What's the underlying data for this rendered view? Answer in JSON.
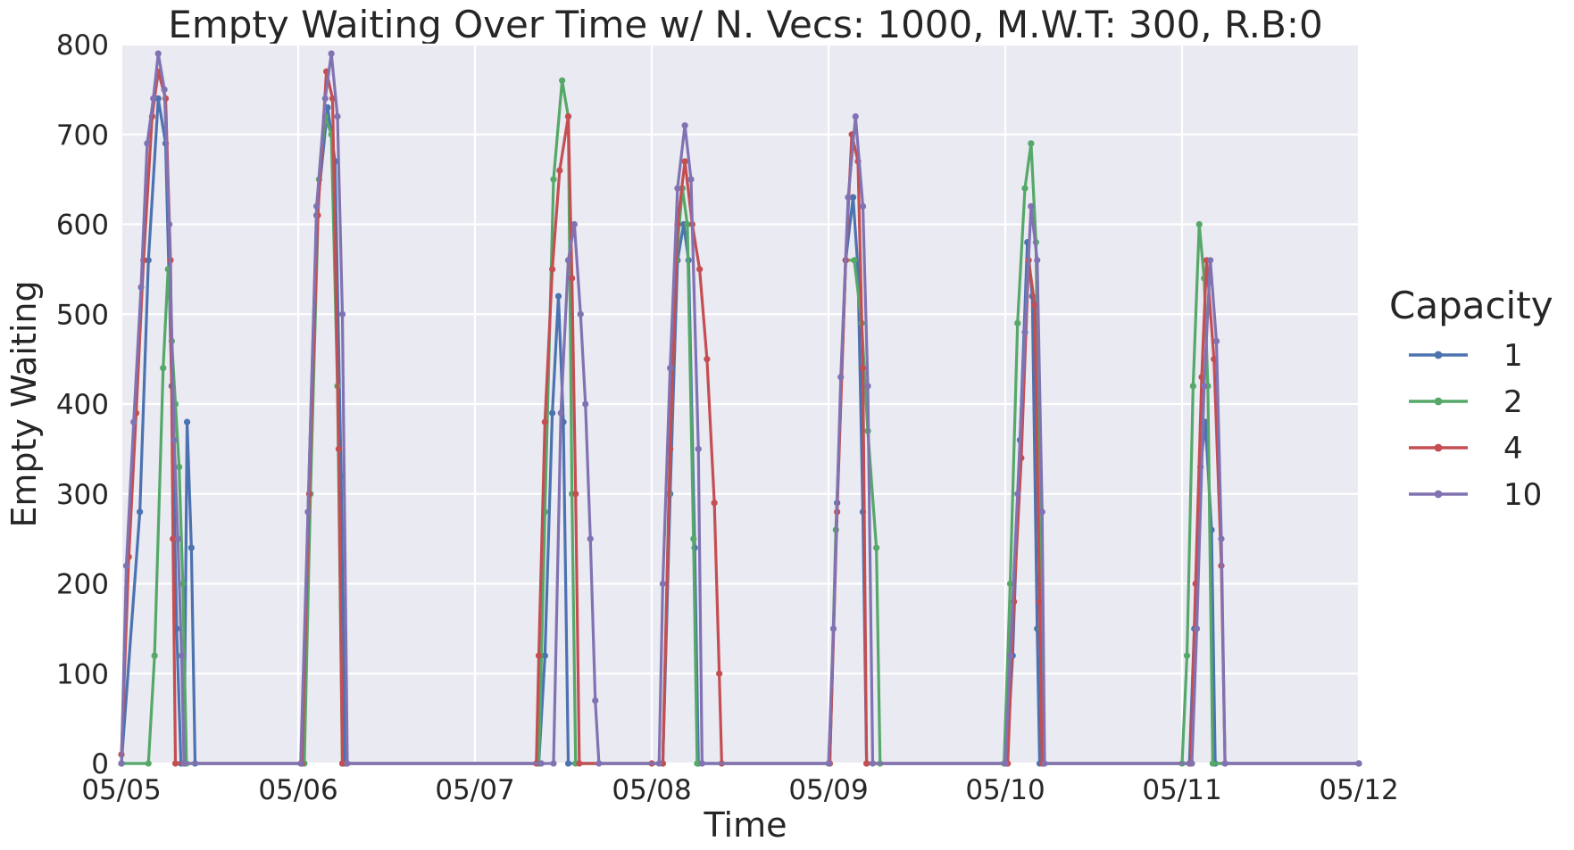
{
  "chart_data": {
    "type": "line",
    "title": "Empty Waiting Over Time w/ N. Vecs: 1000, M.W.T: 300, R.B:0",
    "xlabel": "Time",
    "ylabel": "Empty Waiting",
    "x_ticks": [
      "05/05",
      "05/06",
      "05/07",
      "05/08",
      "05/09",
      "05/10",
      "05/11",
      "05/12"
    ],
    "y_ticks": [
      "0",
      "100",
      "200",
      "300",
      "400",
      "500",
      "600",
      "700",
      "800"
    ],
    "xlim": [
      "05/05 00:00",
      "05/12 00:00"
    ],
    "ylim": [
      0,
      800
    ],
    "grid": true,
    "legend": {
      "title": "Capacity",
      "position": "right"
    },
    "series": [
      {
        "name": "1",
        "color": "#4c72b0",
        "points": [
          [
            "05/05 00:00",
            0
          ],
          [
            "05/05 02:30",
            280
          ],
          [
            "05/05 03:40",
            560
          ],
          [
            "05/05 05:00",
            740
          ],
          [
            "05/05 06:00",
            690
          ],
          [
            "05/05 06:50",
            420
          ],
          [
            "05/05 07:30",
            150
          ],
          [
            "05/05 08:05",
            0
          ],
          [
            "05/05 08:30",
            0
          ],
          [
            "05/05 08:55",
            380
          ],
          [
            "05/05 09:30",
            240
          ],
          [
            "05/05 10:00",
            0
          ],
          [
            "05/06 00:30",
            0
          ],
          [
            "05/06 01:20",
            280
          ],
          [
            "05/06 02:30",
            610
          ],
          [
            "05/06 04:00",
            730
          ],
          [
            "05/06 05:00",
            670
          ],
          [
            "05/06 05:50",
            320
          ],
          [
            "05/06 06:20",
            0
          ],
          [
            "05/07 08:40",
            0
          ],
          [
            "05/07 09:30",
            120
          ],
          [
            "05/07 10:30",
            390
          ],
          [
            "05/07 11:20",
            520
          ],
          [
            "05/07 12:00",
            380
          ],
          [
            "05/07 12:40",
            0
          ],
          [
            "05/08 01:30",
            0
          ],
          [
            "05/08 02:30",
            300
          ],
          [
            "05/08 03:30",
            560
          ],
          [
            "05/08 04:20",
            600
          ],
          [
            "05/08 05:00",
            560
          ],
          [
            "05/08 05:50",
            240
          ],
          [
            "05/08 06:20",
            0
          ],
          [
            "05/09 00:10",
            0
          ],
          [
            "05/09 01:10",
            290
          ],
          [
            "05/09 02:20",
            560
          ],
          [
            "05/09 03:20",
            630
          ],
          [
            "05/09 04:00",
            550
          ],
          [
            "05/09 04:40",
            280
          ],
          [
            "05/09 05:10",
            0
          ],
          [
            "05/10 00:10",
            0
          ],
          [
            "05/10 01:00",
            120
          ],
          [
            "05/10 02:00",
            360
          ],
          [
            "05/10 03:00",
            580
          ],
          [
            "05/10 03:40",
            520
          ],
          [
            "05/10 04:20",
            150
          ],
          [
            "05/10 04:40",
            0
          ],
          [
            "05/11 01:00",
            0
          ],
          [
            "05/11 01:40",
            150
          ],
          [
            "05/11 02:30",
            330
          ],
          [
            "05/11 03:10",
            380
          ],
          [
            "05/11 04:00",
            260
          ],
          [
            "05/11 04:30",
            0
          ],
          [
            "05/12 00:00",
            0
          ]
        ]
      },
      {
        "name": "2",
        "color": "#55a868",
        "points": [
          [
            "05/05 00:00",
            0
          ],
          [
            "05/05 03:40",
            0
          ],
          [
            "05/05 04:30",
            120
          ],
          [
            "05/05 05:40",
            440
          ],
          [
            "05/05 06:20",
            550
          ],
          [
            "05/05 06:50",
            470
          ],
          [
            "05/05 07:20",
            400
          ],
          [
            "05/05 07:50",
            330
          ],
          [
            "05/05 08:20",
            200
          ],
          [
            "05/05 08:50",
            0
          ],
          [
            "05/06 00:50",
            0
          ],
          [
            "05/06 01:40",
            300
          ],
          [
            "05/06 02:50",
            650
          ],
          [
            "05/06 03:40",
            720
          ],
          [
            "05/06 04:30",
            700
          ],
          [
            "05/06 05:20",
            420
          ],
          [
            "05/06 06:00",
            0
          ],
          [
            "05/07 08:40",
            0
          ],
          [
            "05/07 09:30",
            280
          ],
          [
            "05/07 10:40",
            650
          ],
          [
            "05/07 11:50",
            760
          ],
          [
            "05/07 12:40",
            720
          ],
          [
            "05/07 13:10",
            300
          ],
          [
            "05/07 13:40",
            0
          ],
          [
            "05/08 01:30",
            0
          ],
          [
            "05/08 02:20",
            300
          ],
          [
            "05/08 03:20",
            560
          ],
          [
            "05/08 04:10",
            640
          ],
          [
            "05/08 04:50",
            600
          ],
          [
            "05/08 05:40",
            250
          ],
          [
            "05/08 06:10",
            0
          ],
          [
            "05/09 00:10",
            0
          ],
          [
            "05/09 01:00",
            260
          ],
          [
            "05/09 02:20",
            560
          ],
          [
            "05/09 03:30",
            560
          ],
          [
            "05/09 04:30",
            490
          ],
          [
            "05/09 05:20",
            370
          ],
          [
            "05/09 06:30",
            240
          ],
          [
            "05/09 07:00",
            0
          ],
          [
            "05/09 23:50",
            0
          ],
          [
            "05/10 00:40",
            200
          ],
          [
            "05/10 01:40",
            490
          ],
          [
            "05/10 02:40",
            640
          ],
          [
            "05/10 03:30",
            690
          ],
          [
            "05/10 04:10",
            580
          ],
          [
            "05/10 04:50",
            150
          ],
          [
            "05/10 05:10",
            0
          ],
          [
            "05/11 00:00",
            0
          ],
          [
            "05/11 00:40",
            120
          ],
          [
            "05/11 01:30",
            420
          ],
          [
            "05/11 02:20",
            600
          ],
          [
            "05/11 03:00",
            540
          ],
          [
            "05/11 03:30",
            420
          ],
          [
            "05/11 04:10",
            0
          ],
          [
            "05/12 00:00",
            0
          ]
        ]
      },
      {
        "name": "4",
        "color": "#c44e52",
        "points": [
          [
            "05/05 00:00",
            10
          ],
          [
            "05/05 01:00",
            230
          ],
          [
            "05/05 02:00",
            390
          ],
          [
            "05/05 03:00",
            560
          ],
          [
            "05/05 04:10",
            720
          ],
          [
            "05/05 05:00",
            770
          ],
          [
            "05/05 06:00",
            740
          ],
          [
            "05/05 06:40",
            560
          ],
          [
            "05/05 07:00",
            250
          ],
          [
            "05/05 07:20",
            0
          ],
          [
            "05/06 00:30",
            0
          ],
          [
            "05/06 01:30",
            300
          ],
          [
            "05/06 02:40",
            610
          ],
          [
            "05/06 03:50",
            770
          ],
          [
            "05/06 04:40",
            740
          ],
          [
            "05/06 05:30",
            350
          ],
          [
            "05/06 06:00",
            0
          ],
          [
            "05/07 08:20",
            0
          ],
          [
            "05/07 08:40",
            120
          ],
          [
            "05/07 09:30",
            380
          ],
          [
            "05/07 10:30",
            550
          ],
          [
            "05/07 11:30",
            660
          ],
          [
            "05/07 12:40",
            720
          ],
          [
            "05/07 13:10",
            540
          ],
          [
            "05/07 13:40",
            300
          ],
          [
            "05/07 14:10",
            0
          ],
          [
            "05/08 00:00",
            0
          ],
          [
            "05/08 01:30",
            0
          ],
          [
            "05/08 02:30",
            350
          ],
          [
            "05/08 03:30",
            600
          ],
          [
            "05/08 04:30",
            670
          ],
          [
            "05/08 05:30",
            600
          ],
          [
            "05/08 06:30",
            550
          ],
          [
            "05/08 07:30",
            450
          ],
          [
            "05/08 08:30",
            290
          ],
          [
            "05/08 09:10",
            100
          ],
          [
            "05/08 09:30",
            0
          ],
          [
            "05/09 00:10",
            0
          ],
          [
            "05/09 01:10",
            280
          ],
          [
            "05/09 02:20",
            560
          ],
          [
            "05/09 03:10",
            700
          ],
          [
            "05/09 04:00",
            670
          ],
          [
            "05/09 04:40",
            440
          ],
          [
            "05/09 05:10",
            0
          ],
          [
            "05/10 00:20",
            0
          ],
          [
            "05/10 01:10",
            180
          ],
          [
            "05/10 02:10",
            340
          ],
          [
            "05/10 03:10",
            560
          ],
          [
            "05/10 04:00",
            510
          ],
          [
            "05/10 04:40",
            180
          ],
          [
            "05/10 05:00",
            0
          ],
          [
            "05/11 01:10",
            0
          ],
          [
            "05/11 01:50",
            200
          ],
          [
            "05/11 02:40",
            430
          ],
          [
            "05/11 03:20",
            560
          ],
          [
            "05/11 04:20",
            450
          ],
          [
            "05/11 05:20",
            220
          ],
          [
            "05/11 05:50",
            0
          ],
          [
            "05/12 00:00",
            0
          ]
        ]
      },
      {
        "name": "10",
        "color": "#8172b2",
        "points": [
          [
            "05/05 00:00",
            0
          ],
          [
            "05/05 00:40",
            220
          ],
          [
            "05/05 01:40",
            380
          ],
          [
            "05/05 02:40",
            530
          ],
          [
            "05/05 03:30",
            690
          ],
          [
            "05/05 04:20",
            740
          ],
          [
            "05/05 05:00",
            790
          ],
          [
            "05/05 05:50",
            750
          ],
          [
            "05/05 06:30",
            600
          ],
          [
            "05/05 07:10",
            360
          ],
          [
            "05/05 07:40",
            250
          ],
          [
            "05/05 08:10",
            120
          ],
          [
            "05/05 08:30",
            0
          ],
          [
            "05/06 00:20",
            0
          ],
          [
            "05/06 01:20",
            280
          ],
          [
            "05/06 02:30",
            620
          ],
          [
            "05/06 03:40",
            740
          ],
          [
            "05/06 04:30",
            790
          ],
          [
            "05/06 05:20",
            720
          ],
          [
            "05/06 06:00",
            500
          ],
          [
            "05/06 06:40",
            0
          ],
          [
            "05/07 09:00",
            0
          ],
          [
            "05/07 10:40",
            0
          ],
          [
            "05/07 11:40",
            390
          ],
          [
            "05/07 12:40",
            560
          ],
          [
            "05/07 13:30",
            600
          ],
          [
            "05/07 14:20",
            500
          ],
          [
            "05/07 15:00",
            400
          ],
          [
            "05/07 15:40",
            250
          ],
          [
            "05/07 16:20",
            70
          ],
          [
            "05/07 16:50",
            0
          ],
          [
            "05/08 01:00",
            0
          ],
          [
            "05/08 01:30",
            200
          ],
          [
            "05/08 02:30",
            440
          ],
          [
            "05/08 03:30",
            640
          ],
          [
            "05/08 04:30",
            710
          ],
          [
            "05/08 05:20",
            650
          ],
          [
            "05/08 06:20",
            350
          ],
          [
            "05/08 06:50",
            0
          ],
          [
            "05/09 00:00",
            0
          ],
          [
            "05/09 00:40",
            150
          ],
          [
            "05/09 01:40",
            430
          ],
          [
            "05/09 02:40",
            630
          ],
          [
            "05/09 03:40",
            720
          ],
          [
            "05/09 04:40",
            620
          ],
          [
            "05/09 05:20",
            420
          ],
          [
            "05/09 06:00",
            0
          ],
          [
            "05/10 00:00",
            0
          ],
          [
            "05/10 00:40",
            120
          ],
          [
            "05/10 01:40",
            300
          ],
          [
            "05/10 02:40",
            480
          ],
          [
            "05/10 03:30",
            620
          ],
          [
            "05/10 04:20",
            560
          ],
          [
            "05/10 05:00",
            280
          ],
          [
            "05/10 05:20",
            0
          ],
          [
            "05/11 01:20",
            0
          ],
          [
            "05/11 02:00",
            150
          ],
          [
            "05/11 03:00",
            420
          ],
          [
            "05/11 03:50",
            560
          ],
          [
            "05/11 04:40",
            470
          ],
          [
            "05/11 05:20",
            250
          ],
          [
            "05/11 05:50",
            0
          ],
          [
            "05/12 00:00",
            0
          ]
        ]
      }
    ]
  }
}
